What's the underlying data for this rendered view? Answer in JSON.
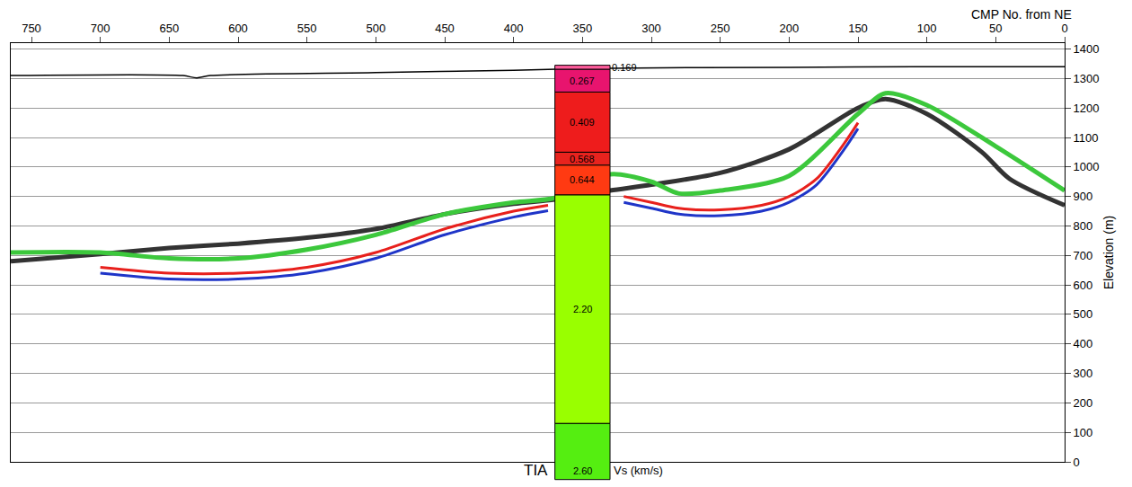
{
  "chart_data": {
    "type": "section",
    "xlabel": "CMP No. from NE",
    "ylabel": "Elevation (m)",
    "xlim": [
      765,
      0
    ],
    "ylim": [
      0,
      1420
    ],
    "xticks": [
      750,
      700,
      650,
      600,
      550,
      500,
      450,
      400,
      350,
      300,
      250,
      200,
      150,
      100,
      50,
      0
    ],
    "yticks": [
      0,
      100,
      200,
      300,
      400,
      500,
      600,
      700,
      800,
      900,
      1000,
      1100,
      1200,
      1300,
      1400
    ],
    "grid": "y",
    "series": [
      {
        "color": "#e8201c",
        "line_style": "medium",
        "x": [
          700,
          650,
          600,
          550,
          500,
          450,
          400,
          375
        ],
        "values": [
          660,
          640,
          640,
          660,
          710,
          790,
          850,
          870
        ]
      },
      {
        "color": "#1f35c8",
        "line_style": "medium",
        "x": [
          700,
          650,
          600,
          550,
          500,
          450,
          400,
          375
        ],
        "values": [
          640,
          620,
          620,
          640,
          690,
          770,
          830,
          852
        ]
      },
      {
        "color": "#e8201c",
        "line_style": "medium",
        "x": [
          320,
          300,
          280,
          250,
          220,
          200,
          180,
          160,
          150
        ],
        "values": [
          900,
          880,
          860,
          855,
          870,
          900,
          960,
          1080,
          1150
        ]
      },
      {
        "color": "#1f35c8",
        "line_style": "medium",
        "x": [
          320,
          300,
          280,
          250,
          220,
          200,
          180,
          160,
          150
        ],
        "values": [
          880,
          860,
          840,
          835,
          850,
          880,
          940,
          1060,
          1130
        ]
      },
      {
        "color": "#000000",
        "line_style": "thin",
        "x": [
          765,
          640,
          630,
          620,
          500,
          400,
          330,
          200,
          100,
          0
        ],
        "values": [
          1310,
          1310,
          1302,
          1310,
          1320,
          1328,
          1335,
          1338,
          1340,
          1340
        ]
      },
      {
        "color": "#333333",
        "line_style": "thick",
        "x": [
          765,
          700,
          650,
          600,
          550,
          500,
          450,
          400,
          370,
          330,
          300,
          250,
          200,
          150,
          130,
          100,
          60,
          40,
          0
        ],
        "values": [
          680,
          705,
          725,
          740,
          760,
          790,
          840,
          875,
          890,
          920,
          940,
          980,
          1060,
          1200,
          1230,
          1180,
          1050,
          960,
          870
        ]
      },
      {
        "color": "#3cc83c",
        "line_style": "thick",
        "x": [
          765,
          700,
          650,
          600,
          550,
          500,
          450,
          400,
          370,
          330,
          300,
          280,
          250,
          200,
          150,
          130,
          100,
          50,
          0
        ],
        "values": [
          710,
          710,
          690,
          690,
          720,
          770,
          840,
          880,
          895,
          975,
          950,
          910,
          920,
          970,
          1180,
          1250,
          1210,
          1070,
          920
        ]
      }
    ],
    "velocity_column": {
      "label": "TIA",
      "unit_label": "Vs (km/s)",
      "x_range": [
        370,
        330
      ],
      "layers": [
        {
          "top": 1345,
          "bottom": 1331,
          "value": 0.169,
          "label": "0.169",
          "color": "#ff5c9c"
        },
        {
          "top": 1331,
          "bottom": 1254,
          "value": 0.267,
          "label": "0.267",
          "color": "#e8146e"
        },
        {
          "top": 1254,
          "bottom": 1050,
          "value": 0.409,
          "label": "0.409",
          "color": "#ee1c1c"
        },
        {
          "top": 1050,
          "bottom": 1006,
          "value": 0.568,
          "label": "0.568",
          "color": "#e8231e"
        },
        {
          "top": 1006,
          "bottom": 905,
          "value": 0.644,
          "label": "0.644",
          "color": "#ff3a12"
        },
        {
          "top": 905,
          "bottom": 130,
          "value": 2.2,
          "label": "2.20",
          "color": "#99ff00"
        },
        {
          "top": 130,
          "bottom": -60,
          "value": 2.6,
          "label": "2.60",
          "color": "#55ee11"
        }
      ]
    }
  }
}
